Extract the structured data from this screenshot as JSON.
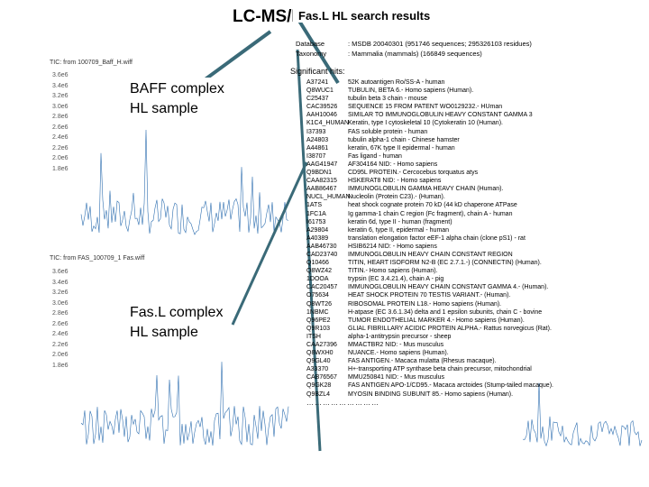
{
  "slide_title": "LC-MS/MS ANALYSIS",
  "popup_title": "Fas.L HL search results",
  "database": {
    "label": "Database",
    "value": ": MSDB 20040301 (951746 sequences; 295326103 residues)"
  },
  "taxonomy": {
    "label": "Taxonomy",
    "value": ": Mammalia (mammals) (166849 sequences)"
  },
  "hits_heading": "Significant hits:",
  "overlay_top": [
    "BAFF complex",
    "HL sample"
  ],
  "overlay_bottom": [
    "Fas.L complex",
    "HL sample"
  ],
  "tic_top": "TIC: from 100709_Baff_H.wiff",
  "tic_bottom": "TIC: from FAS_100709_1 Fas.wiff",
  "axis_ticks": [
    "3.6e6",
    "3.4e6",
    "3.2e6",
    "3.0e6",
    "2.8e6",
    "2.6e6",
    "2.4e6",
    "2.2e6",
    "2.0e6",
    "1.8e6"
  ],
  "hits": [
    {
      "id": "A37241",
      "desc": "52K autoantigen Ro/SS-A - human"
    },
    {
      "id": "Q8WUC1",
      "desc": "TUBULIN, BETA 6.- Homo sapiens (Human)."
    },
    {
      "id": "C25437",
      "desc": "tubulin beta 3 chain - mouse"
    },
    {
      "id": "CAC39526",
      "desc": "SEQUENCE 15 FROM PATENT WO0129232.- HUman"
    },
    {
      "id": "AAH10046",
      "desc": "SIMILAR TO IMMUNOGLOBULIN HEAVY CONSTANT GAMMA 3"
    },
    {
      "id": "K1C4_HUMAN",
      "desc": "Keratin, type I cytoskeletal 10 (Cytokeratin 10 (Human)."
    },
    {
      "id": "I37393",
      "desc": "FAS soluble protein - human"
    },
    {
      "id": "A24803",
      "desc": "tubulin alpha-1 chain - Chinese hamster"
    },
    {
      "id": "A44861",
      "desc": "keratin, 67K type II epidermal - human"
    },
    {
      "id": "I38707",
      "desc": "Fas ligand - human"
    },
    {
      "id": "AAG41947",
      "desc": "AF304164 NID: - Homo sapiens"
    },
    {
      "id": "Q9BDN1",
      "desc": "CD95L PROTEIN.- Cercocebus torquatus atys"
    },
    {
      "id": "CAA82315",
      "desc": "HSKERAT8 NID: - Homo sapiens"
    },
    {
      "id": "AAB86467",
      "desc": "IMMUNOGLOBULIN GAMMA HEAVY CHAIN (Human)."
    },
    {
      "id": "NUCL_HUMAN",
      "desc": "Nucleolin (Protein C23).- (Human)."
    },
    {
      "id": "1ATS",
      "desc": "heat shock cognate protein 70 kD (44 kD chaperone ATPase"
    },
    {
      "id": "1FC1A",
      "desc": "Ig gamma-1 chain C region (Fc fragment), chain A - human"
    },
    {
      "id": "I61753",
      "desc": "keratin 6d, type II - human (fragment)"
    },
    {
      "id": "A29804",
      "desc": "keratin 6, type II, epidermal - human"
    },
    {
      "id": "A40389",
      "desc": "translation elongation factor eEF-1 alpha chain (clone pS1) - rat"
    },
    {
      "id": "AAB46730",
      "desc": "HSIB6214 NID: - Homo sapiens"
    },
    {
      "id": "CAD23740",
      "desc": "IMMUNOGLOBULIN HEAVY CHAIN CONSTANT REGION"
    },
    {
      "id": "Q10466",
      "desc": "TITIN, HEART ISOFORM N2-B (EC 2.7.1.-) (CONNECTIN) (Human)."
    },
    {
      "id": "Q8WZ42",
      "desc": "TITIN.- Homo sapiens (Human)."
    },
    {
      "id": "1DOOA",
      "desc": "trypsin (EC 3.4.21.4), chain A - pig"
    },
    {
      "id": "CAC20457",
      "desc": "IMMUNOGLOBULIN HEAVY CHAIN CONSTANT GAMMA 4.- (Human)."
    },
    {
      "id": "O75634",
      "desc": "HEAT SHOCK PROTEIN 70 TESTIS VARIANT.- (Human)."
    },
    {
      "id": "Q8WT26",
      "desc": "RIBOSOMAL PROTEIN L18.- Homo sapiens (Human)."
    },
    {
      "id": "1NBMC",
      "desc": "H-atpase (EC 3.6.1.34) delta and 1 epsilon subunits, chain C - bovine"
    },
    {
      "id": "Q96PE2",
      "desc": "TUMOR ENDOTHELIAL MARKER 4.- Homo sapiens (Human)."
    },
    {
      "id": "Q9R103",
      "desc": "GLIAL FIBRILLARY ACIDIC PROTEIN ALPHA.- Rattus norvegicus (Rat)."
    },
    {
      "id": "ITSH",
      "desc": "alpha-1-antitrypsin precursor - sheep"
    },
    {
      "id": "CAA27396",
      "desc": "MMACTBR2 NID: - Mus musculus"
    },
    {
      "id": "Q8WXH0",
      "desc": "NUANCE.- Homo sapiens (Human)."
    },
    {
      "id": "Q9GL40",
      "desc": "FAS ANTIGEN.- Macaca mulatta (Rhesus macaque)."
    },
    {
      "id": "A33370",
      "desc": "H+-transporting ATP synthase beta chain precursor, mitochondrial"
    },
    {
      "id": "CAB76567",
      "desc": "MMU250841 NID: - Mus musculus"
    },
    {
      "id": "Q9GK28",
      "desc": "FAS ANTIGEN APO-1/CD95.- Macaca arctoides (Stump-tailed macaque)."
    },
    {
      "id": "Q9BZL4",
      "desc": "MYOSIN BINDING SUBUNIT 85.- Homo sapiens (Human)."
    }
  ],
  "hits_more": "………………………",
  "colors": {
    "trace": "#2f6fb0",
    "arrow": "#3a6a78",
    "inset_trace": "#3070c0"
  }
}
